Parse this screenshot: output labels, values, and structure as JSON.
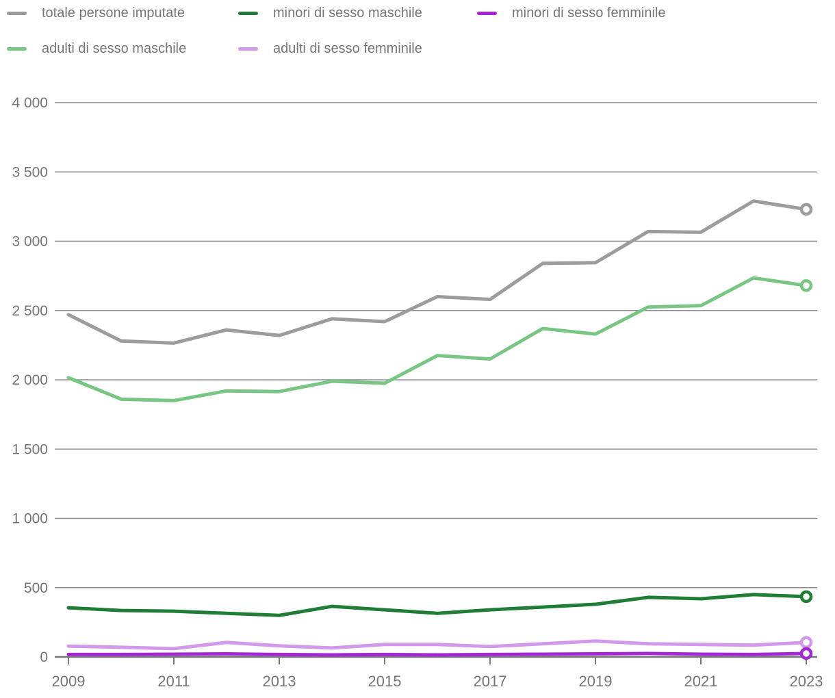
{
  "chart_data": {
    "type": "line",
    "title": "",
    "xlabel": "",
    "ylabel": "",
    "x": [
      2009,
      2010,
      2011,
      2012,
      2013,
      2014,
      2015,
      2016,
      2017,
      2018,
      2019,
      2020,
      2021,
      2022,
      2023
    ],
    "x_tick_labels": [
      "2009",
      "2011",
      "2013",
      "2015",
      "2017",
      "2019",
      "2021",
      "2023"
    ],
    "y_ticks": [
      {
        "value": 0,
        "label": "0"
      },
      {
        "value": 500,
        "label": "500"
      },
      {
        "value": 1000,
        "label": "1 000"
      },
      {
        "value": 1500,
        "label": "1 500"
      },
      {
        "value": 2000,
        "label": "2 000"
      },
      {
        "value": 2500,
        "label": "2 500"
      },
      {
        "value": 3000,
        "label": "3 000"
      },
      {
        "value": 3500,
        "label": "3 500"
      },
      {
        "value": 4000,
        "label": "4 000"
      }
    ],
    "ylim": [
      0,
      4000
    ],
    "grid": "horizontal-only",
    "legend_position": "top-left-two-rows",
    "end_marker": "open-circle-on-last-point",
    "series": [
      {
        "name": "totale persone imputate",
        "color": "#9c9c9c",
        "values": [
          2470,
          2280,
          2265,
          2360,
          2320,
          2440,
          2420,
          2600,
          2580,
          2840,
          2845,
          3070,
          3065,
          3290,
          3230
        ]
      },
      {
        "name": "minori di sesso maschile",
        "color": "#1f7d36",
        "values": [
          355,
          335,
          330,
          315,
          300,
          365,
          340,
          315,
          340,
          360,
          380,
          430,
          420,
          450,
          435
        ]
      },
      {
        "name": "minori di sesso femminile",
        "color": "#a228d4",
        "values": [
          18,
          18,
          20,
          22,
          18,
          15,
          18,
          15,
          18,
          20,
          22,
          25,
          20,
          18,
          25
        ]
      },
      {
        "name": "adulti di sesso maschile",
        "color": "#79c684",
        "values": [
          2015,
          1860,
          1850,
          1920,
          1915,
          1990,
          1975,
          2175,
          2150,
          2370,
          2330,
          2525,
          2535,
          2735,
          2680
        ]
      },
      {
        "name": "adulti di sesso femminile",
        "color": "#d29aea",
        "values": [
          78,
          70,
          60,
          105,
          80,
          65,
          90,
          90,
          75,
          95,
          115,
          95,
          90,
          85,
          105
        ]
      }
    ],
    "text_color": "#757575",
    "grid_color": "#8c8c8c",
    "axis_color": "#787878",
    "background": "#ffffff"
  }
}
